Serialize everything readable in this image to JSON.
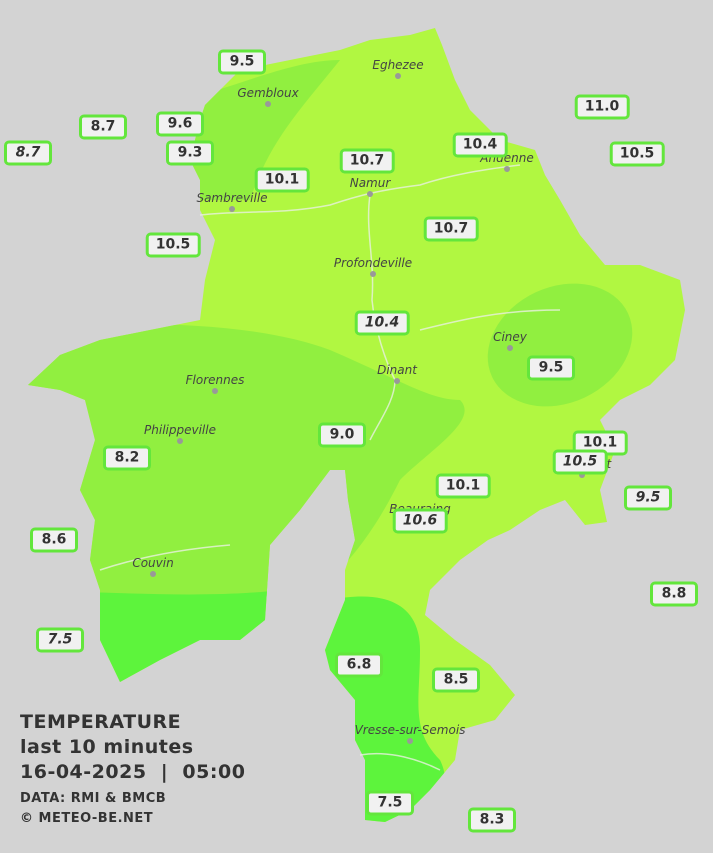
{
  "map": {
    "cities": [
      "Eghezee",
      "Gembloux",
      "Andenne",
      "Namur",
      "Sambreville",
      "Profondeville",
      "Ciney",
      "Dinant",
      "Florennes",
      "Philippeville",
      "Rochefort",
      "Beauraing",
      "Couvin",
      "Vresse-sur-Semois"
    ],
    "stations": [
      "9.5",
      "8.7",
      "9.6",
      "9.3",
      "8.7",
      "10.1",
      "10.7",
      "10.4",
      "11.0",
      "10.5",
      "10.5",
      "10.7",
      "10.4",
      "9.5",
      "9.0",
      "8.2",
      "10.1",
      "10.5",
      "10.1",
      "9.5",
      "10.6",
      "8.6",
      "8.8",
      "7.5",
      "6.8",
      "8.5",
      "7.5",
      "8.3"
    ]
  },
  "legend": {
    "title": "TEMPERATURE",
    "period": "last 10 minutes",
    "datetime": "16-04-2025  |  05:00",
    "source": "DATA: RMI & BMCB",
    "credit": "© METEO-BE.NET"
  }
}
